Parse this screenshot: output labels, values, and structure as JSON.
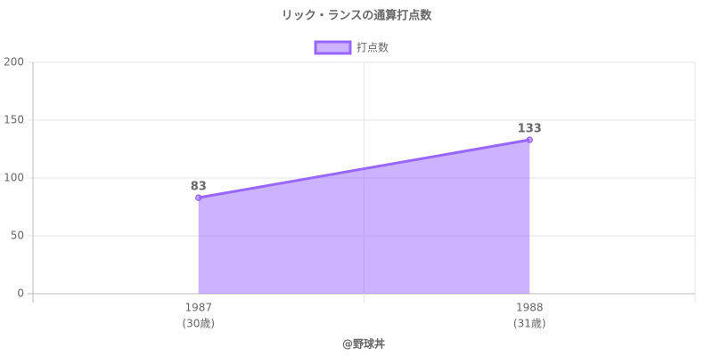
{
  "chart_data": {
    "type": "line",
    "title": "リック・ランスの通算打点数",
    "categories": [
      "1987",
      "1988"
    ],
    "category_notes": [
      "(30歳)",
      "(31歳)"
    ],
    "series": [
      {
        "name": "打点数",
        "color": "#9966ff",
        "values": [
          83,
          133
        ]
      }
    ],
    "ylim": [
      0,
      200
    ],
    "yticks": [
      0,
      50,
      100,
      150,
      200
    ],
    "grid": true,
    "xlabel": "@野球丼",
    "legend": "top",
    "fill": true
  }
}
